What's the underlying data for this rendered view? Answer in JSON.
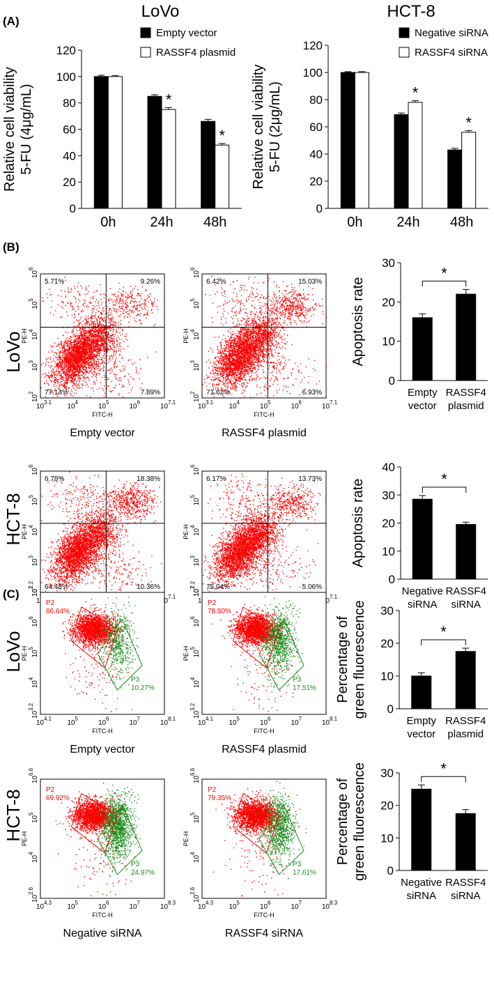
{
  "panel_labels": [
    "(A)",
    "(B)",
    "(C)"
  ],
  "cell_lines": [
    "LoVo",
    "HCT-8"
  ],
  "legends": {
    "lovo": [
      "Empty vector",
      "RASSF4 plasmid"
    ],
    "hct8": [
      "Negative siRNA",
      "RASSF4 siRNA"
    ]
  },
  "flow_labels": {
    "pe": "PE-H",
    "fitc": "FITC-H",
    "p2": "P2",
    "p3": "P3"
  },
  "flow_b": [
    {
      "caption": "Empty vector",
      "ul": "5.71%",
      "ur": "9.26%",
      "ll": "77.14%",
      "lr": "7.89%",
      "xticks": [
        "10",
        "10",
        "10",
        "10",
        "10"
      ],
      "xexp": [
        "3.1",
        "4",
        "5",
        "6",
        "7.1"
      ],
      "yticks": [
        "10",
        "10",
        "10",
        "10",
        "10"
      ],
      "yexp": [
        "2",
        "3",
        "4",
        "5",
        "6"
      ]
    },
    {
      "caption": "RASSF4 plasmid",
      "ul": "6.42%",
      "ur": "15.03%",
      "ll": "71.62%",
      "lr": "6.93%",
      "xticks": [
        "10",
        "10",
        "10",
        "10",
        "10"
      ],
      "xexp": [
        "3.1",
        "4",
        "5",
        "6",
        "7.1"
      ],
      "yticks": [
        "10",
        "10",
        "10",
        "10",
        "10"
      ],
      "yexp": [
        "2",
        "3",
        "4",
        "5",
        "6"
      ]
    },
    {
      "caption": "Negative siRNA",
      "ul": "6.78%",
      "ur": "18.38%",
      "ll": "64.48%",
      "lr": "10.36%",
      "xticks": [
        "10",
        "10",
        "10",
        "10",
        "10"
      ],
      "xexp": [
        "3.1",
        "4",
        "5",
        "6",
        "7.1"
      ],
      "yticks": [
        "10",
        "10",
        "10",
        "10",
        "10"
      ],
      "yexp": [
        "2",
        "3",
        "4",
        "5",
        "6"
      ]
    },
    {
      "caption": "RASSF4 siRNA",
      "ul": "6.17%",
      "ur": "13.73%",
      "ll": "75.04%",
      "lr": "5.06%",
      "xticks": [
        "10",
        "10",
        "10",
        "10",
        "10"
      ],
      "xexp": [
        "3.1",
        "4",
        "5",
        "6",
        "7.1"
      ],
      "yticks": [
        "10",
        "10",
        "10",
        "10",
        "10"
      ],
      "yexp": [
        "2",
        "3",
        "4",
        "5",
        "6"
      ]
    }
  ],
  "flow_c": [
    {
      "caption": "Empty vector",
      "p2": "86.64%",
      "p3": "10.27%",
      "xexp": [
        "4.1",
        "5",
        "6",
        "7",
        "8.1"
      ],
      "yexp": [
        "3.2",
        "4",
        "5",
        "6",
        "7.2"
      ]
    },
    {
      "caption": "RASSF4 plasmid",
      "p2": "78.50%",
      "p3": "17.51%",
      "xexp": [
        "4.1",
        "5",
        "6",
        "7",
        "8.1"
      ],
      "yexp": [
        "3.2",
        "4",
        "5",
        "6",
        "7.2"
      ]
    },
    {
      "caption": "Negative siRNA",
      "p2": "69.92%",
      "p3": "24.97%",
      "xexp": [
        "4.3",
        "5",
        "6",
        "7",
        "8.3"
      ],
      "yexp": [
        "2.6",
        "4",
        "5",
        "6.6"
      ]
    },
    {
      "caption": "RASSF4 siRNA",
      "p2": "79.35%",
      "p3": "17.61%",
      "xexp": [
        "4.3",
        "5",
        "6",
        "7",
        "8.3"
      ],
      "yexp": [
        "2.6",
        "4",
        "5",
        "6.6"
      ]
    }
  ],
  "colors": {
    "red": "#ff0000",
    "green": "#1a8c1a",
    "black": "#000000"
  },
  "chart_data": [
    {
      "type": "bar",
      "title": "LoVo",
      "ylabel": [
        "Relative cell viability",
        "5-FU (4μg/mL)"
      ],
      "categories": [
        "0h",
        "24h",
        "48h"
      ],
      "ylim": [
        0,
        120
      ],
      "yticks": [
        "0",
        "20",
        "40",
        "60",
        "80",
        "100",
        "120"
      ],
      "series": [
        {
          "name": "Empty vector",
          "values": [
            100,
            85,
            66
          ],
          "errors": [
            1,
            1.2,
            1.5
          ],
          "fill": "#000000"
        },
        {
          "name": "RASSF4 plasmid",
          "values": [
            100,
            75,
            48
          ],
          "errors": [
            0.8,
            1.5,
            1.2
          ],
          "fill": "#ffffff"
        }
      ],
      "significance": [
        false,
        true,
        true
      ]
    },
    {
      "type": "bar",
      "title": "HCT-8",
      "ylabel": [
        "Relative cell viability",
        "5-FU (2μg/mL)"
      ],
      "categories": [
        "0h",
        "24h",
        "48h"
      ],
      "ylim": [
        0,
        120
      ],
      "yticks": [
        "0",
        "20",
        "40",
        "60",
        "80",
        "100",
        "120"
      ],
      "series": [
        {
          "name": "Negative siRNA",
          "values": [
            100,
            69,
            43
          ],
          "errors": [
            0.6,
            1.2,
            1.2
          ],
          "fill": "#000000"
        },
        {
          "name": "RASSF4 siRNA",
          "values": [
            100,
            78,
            56
          ],
          "errors": [
            0.6,
            1.2,
            1.2
          ],
          "fill": "#ffffff"
        }
      ],
      "significance": [
        false,
        true,
        true
      ]
    },
    {
      "type": "bar",
      "ylabel": [
        "Apoptosis rate"
      ],
      "ylim": [
        0,
        30
      ],
      "yticks": [
        "0",
        "10",
        "20",
        "30"
      ],
      "categories": [
        [
          "Empty",
          "vector"
        ],
        [
          "RASSF4",
          "plasmid"
        ]
      ],
      "values": [
        16,
        22
      ],
      "errors": [
        1,
        1.2
      ],
      "significance": "*"
    },
    {
      "type": "bar",
      "ylabel": [
        "Apoptosis rate"
      ],
      "ylim": [
        0,
        40
      ],
      "yticks": [
        "0",
        "10",
        "20",
        "30",
        "40"
      ],
      "categories": [
        [
          "Negative",
          "siRNA"
        ],
        [
          "RASSF4",
          "siRNA"
        ]
      ],
      "values": [
        28.5,
        19.5
      ],
      "errors": [
        1.3,
        0.8
      ],
      "significance": "*"
    },
    {
      "type": "bar",
      "ylabel": [
        "Percentage of",
        "green fluorescence"
      ],
      "ylim": [
        0,
        30
      ],
      "yticks": [
        "0",
        "10",
        "20",
        "30"
      ],
      "categories": [
        [
          "Empty",
          "vector"
        ],
        [
          "RASSF4",
          "plasmid"
        ]
      ],
      "values": [
        10,
        17.5
      ],
      "errors": [
        1,
        1
      ],
      "significance": "*"
    },
    {
      "type": "bar",
      "ylabel": [
        "Percentage of",
        "green fluorescence"
      ],
      "ylim": [
        0,
        30
      ],
      "yticks": [
        "0",
        "10",
        "20",
        "30"
      ],
      "categories": [
        [
          "Negative",
          "siRNA"
        ],
        [
          "RASSF4",
          "siRNA"
        ]
      ],
      "values": [
        25,
        17.5
      ],
      "errors": [
        1.3,
        1.2
      ],
      "significance": "*"
    }
  ]
}
